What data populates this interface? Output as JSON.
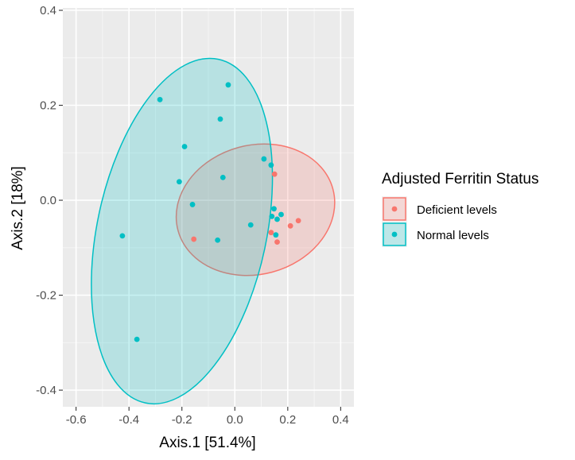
{
  "chart_data": {
    "type": "scatter",
    "xlabel": "Axis.1   [51.4%]",
    "ylabel": "Axis.2   [18%]",
    "xlim": [
      -0.65,
      0.45
    ],
    "ylim": [
      -0.435,
      0.405
    ],
    "x_ticks": [
      -0.6,
      -0.4,
      -0.2,
      0.0,
      0.2,
      0.4
    ],
    "x_tick_labels": [
      "-0.6",
      "-0.4",
      "-0.2",
      "0.0",
      "0.2",
      "0.4"
    ],
    "y_ticks": [
      -0.4,
      -0.2,
      0.0,
      0.2,
      0.4
    ],
    "y_tick_labels": [
      "-0.4",
      "-0.2",
      "0.0",
      "0.2",
      "0.4"
    ],
    "grid": true,
    "legend": {
      "title": "Adjusted Ferritin Status",
      "placement": "right"
    },
    "series": [
      {
        "name": "Deficient levels",
        "color": "#F8766D",
        "points": [
          {
            "x": 0.15,
            "y": 0.055
          },
          {
            "x": 0.24,
            "y": -0.043
          },
          {
            "x": 0.21,
            "y": -0.054
          },
          {
            "x": 0.137,
            "y": -0.068
          },
          {
            "x": 0.16,
            "y": -0.088
          },
          {
            "x": -0.155,
            "y": -0.082
          }
        ],
        "ellipse": {
          "cx": 0.078,
          "cy": -0.02,
          "rx": 0.303,
          "ry": 0.136,
          "angle_deg": 15
        }
      },
      {
        "name": "Normal levels",
        "color": "#00BFC4",
        "points": [
          {
            "x": -0.025,
            "y": 0.243
          },
          {
            "x": -0.283,
            "y": 0.212
          },
          {
            "x": -0.055,
            "y": 0.171
          },
          {
            "x": -0.19,
            "y": 0.113
          },
          {
            "x": 0.11,
            "y": 0.087
          },
          {
            "x": 0.137,
            "y": 0.074
          },
          {
            "x": -0.045,
            "y": 0.048
          },
          {
            "x": -0.21,
            "y": 0.039
          },
          {
            "x": -0.16,
            "y": -0.009
          },
          {
            "x": 0.148,
            "y": -0.018
          },
          {
            "x": 0.175,
            "y": -0.03
          },
          {
            "x": 0.14,
            "y": -0.034
          },
          {
            "x": 0.16,
            "y": -0.04
          },
          {
            "x": 0.06,
            "y": -0.052
          },
          {
            "x": 0.155,
            "y": -0.073
          },
          {
            "x": -0.065,
            "y": -0.084
          },
          {
            "x": -0.425,
            "y": -0.075
          },
          {
            "x": -0.37,
            "y": -0.293
          }
        ],
        "ellipse": {
          "cx": -0.2,
          "cy": -0.065,
          "rx": 0.32,
          "ry": 0.37,
          "angle_deg": -12
        }
      }
    ]
  }
}
